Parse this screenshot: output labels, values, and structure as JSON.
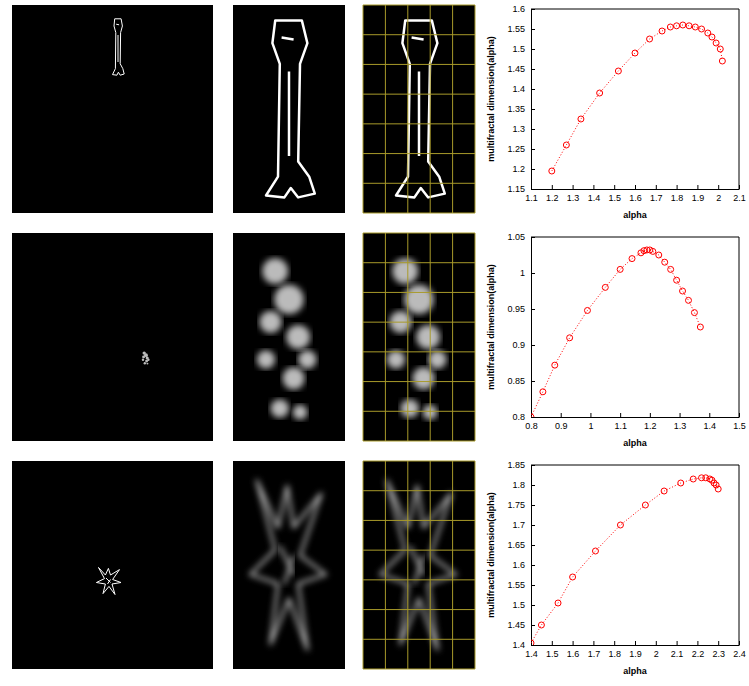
{
  "chart_data": [
    {
      "type": "line",
      "x_label": "alpha",
      "y_label": "multifractal dimension(alpha)",
      "xlim": [
        1.1,
        2.1
      ],
      "xticks": [
        1.1,
        1.2,
        1.3,
        1.4,
        1.5,
        1.6,
        1.7,
        1.8,
        1.9,
        2,
        2.1
      ],
      "ylim": [
        1.15,
        1.6
      ],
      "yticks": [
        1.15,
        1.2,
        1.25,
        1.3,
        1.35,
        1.4,
        1.45,
        1.5,
        1.55,
        1.6
      ],
      "x": [
        1.2,
        1.27,
        1.34,
        1.43,
        1.52,
        1.6,
        1.67,
        1.73,
        1.77,
        1.8,
        1.83,
        1.86,
        1.89,
        1.92,
        1.95,
        1.97,
        1.99,
        2.01,
        2.02
      ],
      "series": [
        {
          "color": "#ff0000",
          "marker": "circle",
          "line_style": "dotted",
          "values": [
            1.195,
            1.26,
            1.325,
            1.39,
            1.445,
            1.49,
            1.525,
            1.545,
            1.555,
            1.558,
            1.56,
            1.558,
            1.555,
            1.55,
            1.54,
            1.53,
            1.515,
            1.5,
            1.47
          ]
        }
      ]
    },
    {
      "type": "line",
      "x_label": "alpha",
      "y_label": "multifractal dimension(alpha)",
      "xlim": [
        0.8,
        1.5
      ],
      "xticks": [
        0.8,
        0.9,
        1,
        1.1,
        1.2,
        1.3,
        1.4,
        1.5
      ],
      "ylim": [
        0.8,
        1.05
      ],
      "yticks": [
        0.8,
        0.85,
        0.9,
        0.95,
        1,
        1.05
      ],
      "x": [
        0.8,
        0.84,
        0.88,
        0.93,
        0.99,
        1.05,
        1.1,
        1.14,
        1.17,
        1.18,
        1.19,
        1.2,
        1.21,
        1.23,
        1.25,
        1.27,
        1.29,
        1.31,
        1.33,
        1.35,
        1.37
      ],
      "series": [
        {
          "color": "#ff0000",
          "marker": "circle",
          "line_style": "dotted",
          "values": [
            0.8,
            0.835,
            0.872,
            0.91,
            0.948,
            0.98,
            1.005,
            1.02,
            1.028,
            1.031,
            1.032,
            1.032,
            1.03,
            1.025,
            1.015,
            1.005,
            0.99,
            0.975,
            0.962,
            0.945,
            0.925
          ]
        }
      ]
    },
    {
      "type": "line",
      "x_label": "alpha",
      "y_label": "multifractal dimension(alpha)",
      "xlim": [
        1.4,
        2.4
      ],
      "xticks": [
        1.4,
        1.5,
        1.6,
        1.7,
        1.8,
        1.9,
        2,
        2.1,
        2.2,
        2.3,
        2.4
      ],
      "ylim": [
        1.4,
        1.85
      ],
      "yticks": [
        1.4,
        1.45,
        1.5,
        1.55,
        1.6,
        1.65,
        1.7,
        1.75,
        1.8,
        1.85
      ],
      "x": [
        1.4,
        1.45,
        1.53,
        1.6,
        1.71,
        1.83,
        1.95,
        2.04,
        2.12,
        2.18,
        2.22,
        2.24,
        2.26,
        2.27,
        2.28,
        2.29,
        2.3
      ],
      "series": [
        {
          "color": "#ff0000",
          "marker": "circle",
          "line_style": "dotted",
          "values": [
            1.405,
            1.45,
            1.505,
            1.57,
            1.635,
            1.7,
            1.75,
            1.785,
            1.805,
            1.815,
            1.818,
            1.818,
            1.815,
            1.812,
            1.805,
            1.8,
            1.79
          ]
        }
      ]
    }
  ]
}
